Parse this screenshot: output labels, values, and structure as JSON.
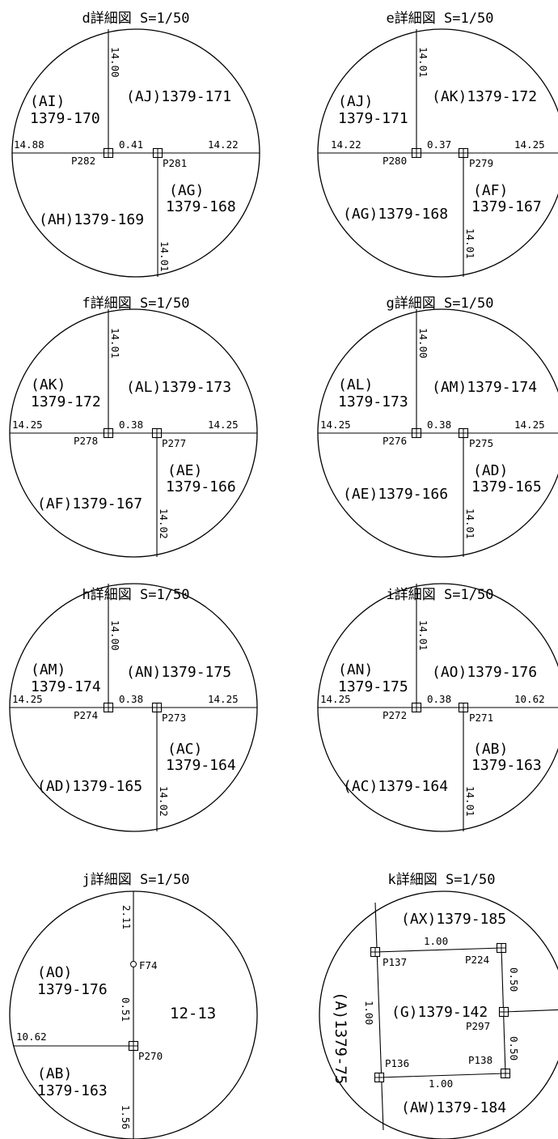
{
  "details": [
    {
      "title": "d詳細図 S=1/50",
      "lbl_topleft_1": "(AI)",
      "lbl_topleft_2": "1379-170",
      "lbl_topright": "(AJ)1379-171",
      "lbl_botleft": "(AH)1379-169",
      "lbl_botright_1": "(AG)",
      "lbl_botright_2": "1379-168",
      "dim_top": "14.00",
      "dim_left": "14.88",
      "dim_mid": "0.41",
      "dim_right": "14.22",
      "dim_bottom": "14.01",
      "pt_left": "P282",
      "pt_right": "P281"
    },
    {
      "title": "e詳細図 S=1/50",
      "lbl_topleft_1": "(AJ)",
      "lbl_topleft_2": "1379-171",
      "lbl_topright": "(AK)1379-172",
      "lbl_botleft": "(AG)1379-168",
      "lbl_botright_1": "(AF)",
      "lbl_botright_2": "1379-167",
      "dim_top": "14.01",
      "dim_left": "14.22",
      "dim_mid": "0.37",
      "dim_right": "14.25",
      "dim_bottom": "14.01",
      "pt_left": "P280",
      "pt_right": "P279"
    },
    {
      "title": "f詳細図 S=1/50",
      "lbl_topleft_1": "(AK)",
      "lbl_topleft_2": "1379-172",
      "lbl_topright": "(AL)1379-173",
      "lbl_botleft": "(AF)1379-167",
      "lbl_botright_1": "(AE)",
      "lbl_botright_2": "1379-166",
      "dim_top": "14.01",
      "dim_left": "14.25",
      "dim_mid": "0.38",
      "dim_right": "14.25",
      "dim_bottom": "14.02",
      "pt_left": "P278",
      "pt_right": "P277"
    },
    {
      "title": "g詳細図 S=1/50",
      "lbl_topleft_1": "(AL)",
      "lbl_topleft_2": "1379-173",
      "lbl_topright": "(AM)1379-174",
      "lbl_botleft": "(AE)1379-166",
      "lbl_botright_1": "(AD)",
      "lbl_botright_2": "1379-165",
      "dim_top": "14.00",
      "dim_left": "14.25",
      "dim_mid": "0.38",
      "dim_right": "14.25",
      "dim_bottom": "14.01",
      "pt_left": "P276",
      "pt_right": "P275"
    },
    {
      "title": "h詳細図 S=1/50",
      "lbl_topleft_1": "(AM)",
      "lbl_topleft_2": "1379-174",
      "lbl_topright": "(AN)1379-175",
      "lbl_botleft": "(AD)1379-165",
      "lbl_botright_1": "(AC)",
      "lbl_botright_2": "1379-164",
      "dim_top": "14.00",
      "dim_left": "14.25",
      "dim_mid": "0.38",
      "dim_right": "14.25",
      "dim_bottom": "14.02",
      "pt_left": "P274",
      "pt_right": "P273"
    },
    {
      "title": "i詳細図 S=1/50",
      "lbl_topleft_1": "(AN)",
      "lbl_topleft_2": "1379-175",
      "lbl_topright": "(AO)1379-176",
      "lbl_botleft": "(AC)1379-164",
      "lbl_botright_1": "(AB)",
      "lbl_botright_2": "1379-163",
      "dim_top": "14.01",
      "dim_left": "14.25",
      "dim_mid": "0.38",
      "dim_right": "10.62",
      "dim_bottom": "14.01",
      "pt_left": "P272",
      "pt_right": "P271"
    }
  ],
  "detail_j": {
    "title": "j詳細図 S=1/50",
    "lbl_ao_1": "(AO)",
    "lbl_ao_2": "1379-176",
    "lbl_ab_1": "(AB)",
    "lbl_ab_2": "1379-163",
    "lbl_right": "12-13",
    "dim_top": "2.11",
    "dim_mid": "0.51",
    "dim_left": "10.62",
    "dim_bottom": "1.56",
    "pt_f": "F74",
    "pt_p": "P270"
  },
  "detail_k": {
    "title": "k詳細図 S=1/50",
    "lbl_top": "(AX)1379-185",
    "lbl_center": "(G)1379-142",
    "lbl_bottom": "(AW)1379-184",
    "lbl_left": "(A)1379-75",
    "dim_top": "1.00",
    "dim_bottom": "1.00",
    "dim_left": "1.00",
    "dim_right_top": "0.50",
    "dim_right_bottom": "0.50",
    "pt_tl": "P137",
    "pt_tr": "P224",
    "pt_r": "P297",
    "pt_bl": "P136",
    "pt_br": "P138"
  }
}
